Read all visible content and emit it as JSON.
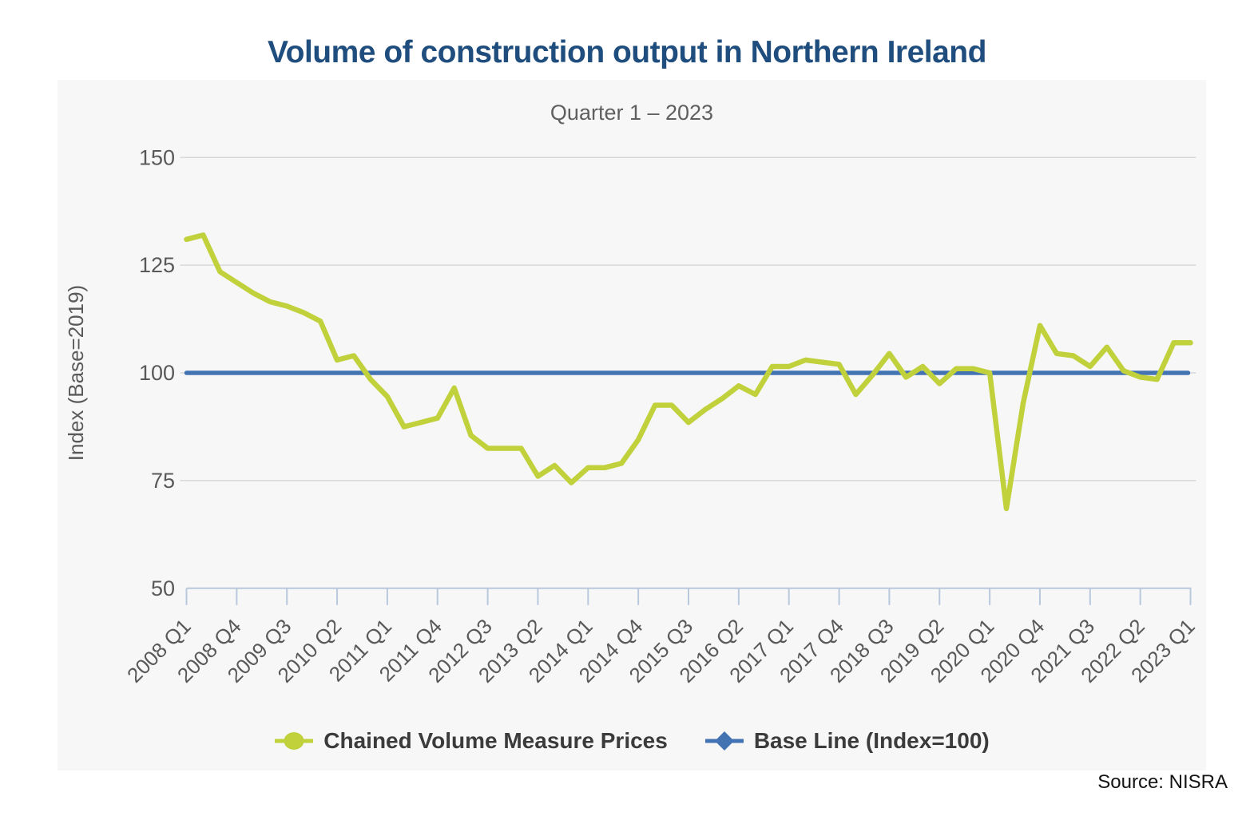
{
  "title": "Volume of construction output in Northern Ireland",
  "subtitle": "Quarter 1 – 2023",
  "source": "Source: NISRA",
  "colors": {
    "title_text": "#1f4e7e",
    "subtitle_text": "#5f5f5f",
    "panel_background": "#f7f7f7",
    "gridline": "#d8d8d8",
    "axis_line": "#b9c8dd",
    "tick_label_text": "#595959",
    "series_green": "#c0d13b",
    "series_blue": "#4473b4",
    "legend_text": "#3b3b3b"
  },
  "legend": {
    "items": [
      {
        "label": "Chained Volume Measure Prices",
        "color": "#c0d13b",
        "marker": "circle"
      },
      {
        "label": "Base Line (Index=100)",
        "color": "#4473b4",
        "marker": "diamond"
      }
    ]
  },
  "chart_data": {
    "type": "line",
    "title": "Volume of construction output in Northern Ireland",
    "subtitle": "Quarter 1 – 2023",
    "ylabel": "Index (Base=2019)",
    "ylim": [
      50,
      150
    ],
    "y_ticks": [
      150,
      125,
      100,
      75,
      50
    ],
    "grid": true,
    "legend_position": "bottom",
    "x_tick_labels": [
      "2008 Q1",
      "2008 Q4",
      "2009 Q3",
      "2010 Q2",
      "2011 Q1",
      "2011 Q4",
      "2012 Q3",
      "2013 Q2",
      "2014 Q1",
      "2014 Q4",
      "2015 Q3",
      "2016 Q2",
      "2017 Q1",
      "2017 Q4",
      "2018 Q3",
      "2019 Q2",
      "2020 Q1",
      "2020 Q4",
      "2021 Q3",
      "2022 Q2",
      "2023 Q1"
    ],
    "x": [
      "2008 Q1",
      "2008 Q2",
      "2008 Q3",
      "2008 Q4",
      "2009 Q1",
      "2009 Q2",
      "2009 Q3",
      "2009 Q4",
      "2010 Q1",
      "2010 Q2",
      "2010 Q3",
      "2010 Q4",
      "2011 Q1",
      "2011 Q2",
      "2011 Q3",
      "2011 Q4",
      "2012 Q1",
      "2012 Q2",
      "2012 Q3",
      "2012 Q4",
      "2013 Q1",
      "2013 Q2",
      "2013 Q3",
      "2013 Q4",
      "2014 Q1",
      "2014 Q2",
      "2014 Q3",
      "2014 Q4",
      "2015 Q1",
      "2015 Q2",
      "2015 Q3",
      "2015 Q4",
      "2016 Q1",
      "2016 Q2",
      "2016 Q3",
      "2016 Q4",
      "2017 Q1",
      "2017 Q2",
      "2017 Q3",
      "2017 Q4",
      "2018 Q1",
      "2018 Q2",
      "2018 Q3",
      "2018 Q4",
      "2019 Q1",
      "2019 Q2",
      "2019 Q3",
      "2019 Q4",
      "2020 Q1",
      "2020 Q2",
      "2020 Q3",
      "2020 Q4",
      "2021 Q1",
      "2021 Q2",
      "2021 Q3",
      "2021 Q4",
      "2022 Q1",
      "2022 Q2",
      "2022 Q3",
      "2022 Q4",
      "2023 Q1"
    ],
    "series": [
      {
        "name": "Chained Volume Measure Prices",
        "color": "#c0d13b",
        "values": [
          131,
          132,
          123.5,
          121,
          118.5,
          116.5,
          115.5,
          114,
          112,
          103,
          104,
          98.5,
          94.5,
          87.5,
          88.5,
          89.5,
          96.5,
          85.5,
          82.5,
          82.5,
          82.5,
          76,
          78.5,
          74.5,
          78,
          78,
          79,
          84.5,
          92.5,
          92.5,
          88.5,
          91.5,
          94,
          97,
          95,
          101.5,
          101.5,
          103,
          102.5,
          102,
          95,
          99.5,
          104.5,
          99,
          101.5,
          97.5,
          101,
          101,
          100,
          68.5,
          93,
          111,
          104.5,
          104,
          101.5,
          106,
          100.5,
          99,
          98.5,
          107,
          107
        ]
      },
      {
        "name": "Base Line (Index=100)",
        "color": "#4473b4",
        "constant_value": 100
      }
    ]
  }
}
